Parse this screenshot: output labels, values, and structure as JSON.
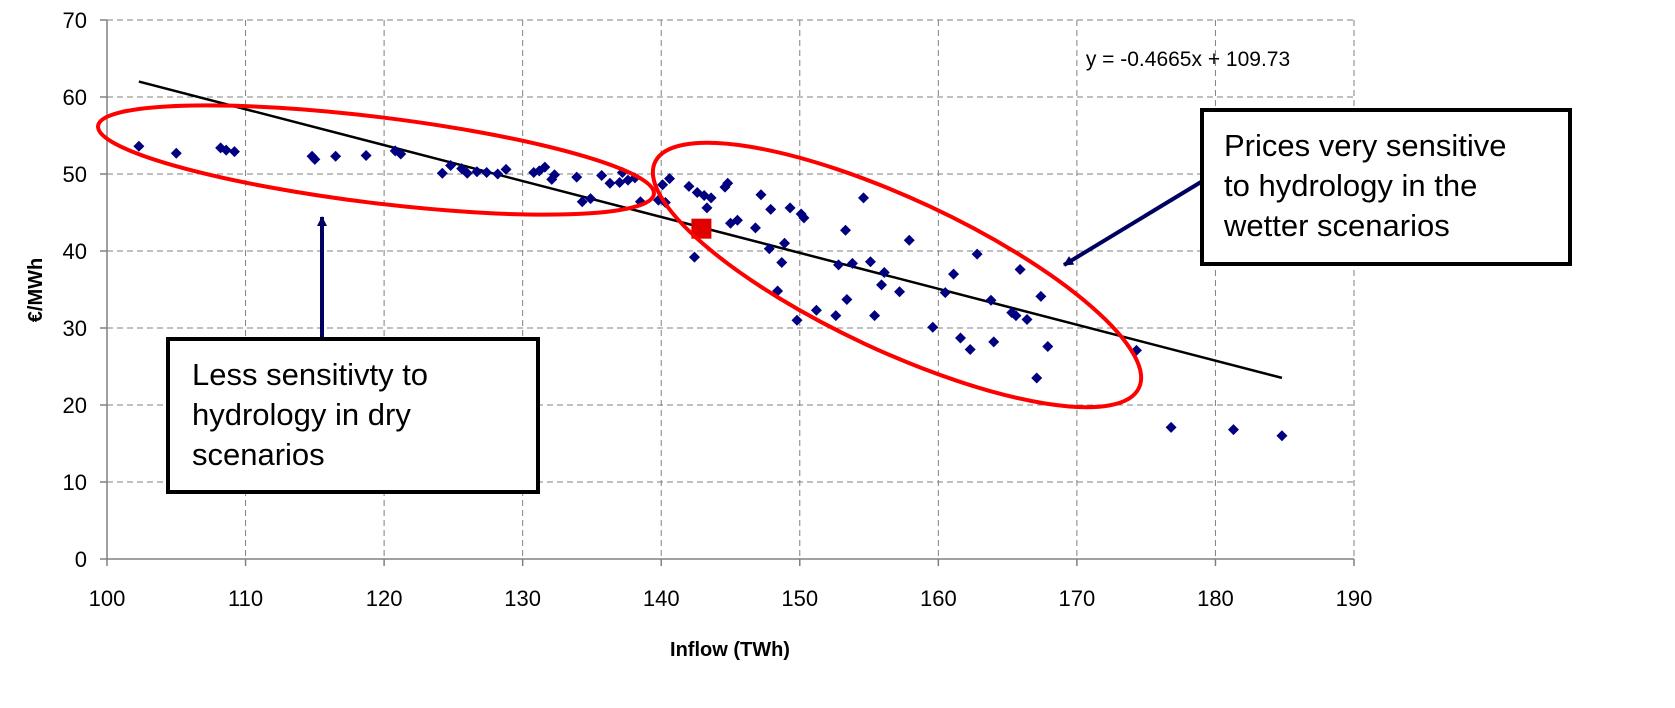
{
  "chart_data": {
    "type": "scatter",
    "xlabel": "Inflow (TWh)",
    "ylabel": "€/MWh",
    "xlim": [
      100,
      190
    ],
    "ylim": [
      0,
      70
    ],
    "xticks": [
      100,
      110,
      120,
      130,
      140,
      150,
      160,
      170,
      180,
      190
    ],
    "yticks": [
      0,
      10,
      20,
      30,
      40,
      50,
      60,
      70
    ],
    "grid": true,
    "series": [
      {
        "marker": "diamond",
        "color": "#000080",
        "points": [
          [
            102.3,
            53.6
          ],
          [
            105.0,
            52.7
          ],
          [
            108.2,
            53.4
          ],
          [
            108.6,
            53.1
          ],
          [
            109.2,
            52.9
          ],
          [
            114.8,
            52.3
          ],
          [
            115.0,
            51.9
          ],
          [
            116.5,
            52.3
          ],
          [
            118.7,
            52.4
          ],
          [
            120.8,
            53.0
          ],
          [
            121.2,
            52.6
          ],
          [
            124.2,
            50.1
          ],
          [
            124.8,
            51.1
          ],
          [
            125.6,
            50.7
          ],
          [
            126.0,
            50.1
          ],
          [
            126.7,
            50.3
          ],
          [
            127.4,
            50.2
          ],
          [
            128.2,
            50.0
          ],
          [
            128.8,
            50.6
          ],
          [
            130.8,
            50.2
          ],
          [
            131.2,
            50.4
          ],
          [
            131.6,
            50.9
          ],
          [
            132.1,
            49.3
          ],
          [
            132.3,
            49.9
          ],
          [
            133.9,
            49.6
          ],
          [
            134.3,
            46.4
          ],
          [
            134.9,
            46.8
          ],
          [
            135.7,
            49.8
          ],
          [
            136.3,
            48.8
          ],
          [
            137.0,
            48.9
          ],
          [
            137.2,
            50.2
          ],
          [
            137.6,
            49.2
          ],
          [
            138.1,
            49.5
          ],
          [
            138.5,
            46.4
          ],
          [
            139.8,
            46.6
          ],
          [
            140.1,
            48.6
          ],
          [
            140.3,
            46.3
          ],
          [
            140.6,
            49.4
          ],
          [
            142.0,
            48.4
          ],
          [
            142.4,
            39.2
          ],
          [
            142.6,
            47.6
          ],
          [
            143.1,
            47.2
          ],
          [
            143.3,
            45.6
          ],
          [
            143.6,
            46.9
          ],
          [
            144.6,
            48.3
          ],
          [
            144.8,
            48.8
          ],
          [
            145.0,
            43.6
          ],
          [
            145.5,
            44.0
          ],
          [
            146.8,
            43.0
          ],
          [
            147.2,
            47.3
          ],
          [
            147.8,
            40.3
          ],
          [
            147.9,
            45.4
          ],
          [
            148.4,
            34.8
          ],
          [
            148.7,
            38.5
          ],
          [
            148.9,
            41.0
          ],
          [
            149.3,
            45.6
          ],
          [
            149.8,
            31.0
          ],
          [
            150.1,
            44.8
          ],
          [
            150.3,
            44.3
          ],
          [
            151.2,
            32.3
          ],
          [
            152.6,
            31.6
          ],
          [
            152.8,
            38.2
          ],
          [
            153.3,
            42.7
          ],
          [
            153.4,
            33.7
          ],
          [
            153.8,
            38.4
          ],
          [
            154.6,
            46.9
          ],
          [
            155.1,
            38.6
          ],
          [
            155.4,
            31.6
          ],
          [
            155.9,
            35.6
          ],
          [
            156.1,
            37.2
          ],
          [
            157.2,
            34.7
          ],
          [
            157.9,
            41.4
          ],
          [
            159.6,
            30.1
          ],
          [
            160.5,
            34.6
          ],
          [
            161.1,
            37.0
          ],
          [
            161.6,
            28.7
          ],
          [
            162.3,
            27.2
          ],
          [
            162.8,
            39.6
          ],
          [
            163.8,
            33.6
          ],
          [
            164.0,
            28.2
          ],
          [
            165.3,
            32.0
          ],
          [
            165.6,
            31.6
          ],
          [
            165.9,
            37.6
          ],
          [
            166.4,
            31.1
          ],
          [
            167.1,
            23.5
          ],
          [
            167.4,
            34.1
          ],
          [
            167.9,
            27.6
          ],
          [
            174.3,
            27.1
          ],
          [
            176.8,
            17.1
          ],
          [
            181.3,
            16.8
          ],
          [
            184.8,
            16.0
          ]
        ]
      }
    ],
    "highlight_point": {
      "x": 142.9,
      "y": 42.9,
      "color": "#e00000",
      "marker": "square"
    },
    "trendline": {
      "slope": -0.4665,
      "intercept": 109.73,
      "x_range": [
        102.3,
        184.8
      ],
      "equation": "y = -0.4665x + 109.73"
    },
    "annotations": [
      {
        "text_lines": [
          "Less sensitivty to",
          "hydrology in dry",
          "scenarios"
        ]
      },
      {
        "text_lines": [
          "Prices very sensitive",
          "to hydrology in the",
          "wetter scenarios"
        ]
      }
    ]
  }
}
